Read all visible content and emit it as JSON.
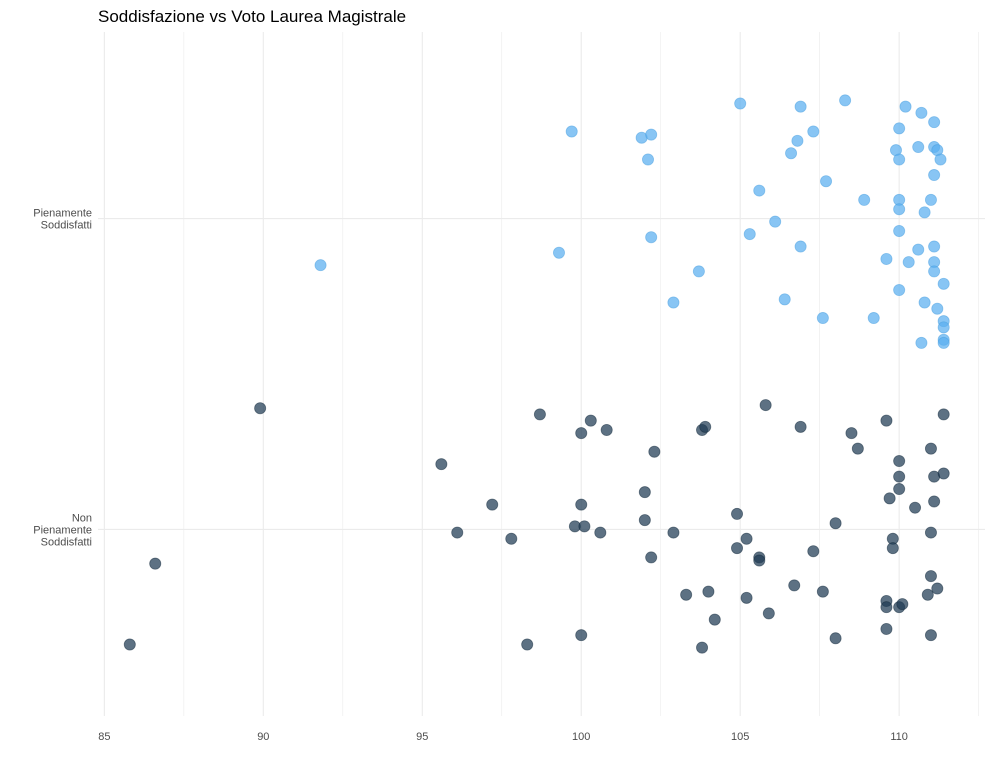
{
  "chart_data": {
    "type": "scatter",
    "title": "Soddisfazione vs Voto Laurea Magistrale",
    "xlabel": "",
    "ylabel": "",
    "xlim": [
      84.8,
      112.7
    ],
    "x_ticks": [
      85,
      90,
      95,
      100,
      105,
      110
    ],
    "categories": [
      "Non Pienamente Soddisfatti",
      "Pienamente Soddisfatti"
    ],
    "category_tick_lines": [
      [
        "Non",
        "Pienamente",
        "Soddisfatti"
      ],
      [
        "Pienamente",
        "Soddisfatti"
      ]
    ],
    "grid": true,
    "legend": "none",
    "colors": {
      "Pienamente Soddisfatti": "#5aaff0",
      "Non Pienamente Soddisfatti": "#1f3a53"
    },
    "series": [
      {
        "category": "Pienamente Soddisfatti",
        "points": [
          [
            105.0,
            0.37
          ],
          [
            106.9,
            0.36
          ],
          [
            108.3,
            0.38
          ],
          [
            110.2,
            0.36
          ],
          [
            110.7,
            0.34
          ],
          [
            111.1,
            0.31
          ],
          [
            99.7,
            0.28
          ],
          [
            101.9,
            0.26
          ],
          [
            102.2,
            0.27
          ],
          [
            106.8,
            0.25
          ],
          [
            107.3,
            0.28
          ],
          [
            110.0,
            0.29
          ],
          [
            110.6,
            0.23
          ],
          [
            111.1,
            0.23
          ],
          [
            111.2,
            0.22
          ],
          [
            111.3,
            0.19
          ],
          [
            109.9,
            0.22
          ],
          [
            110.0,
            0.19
          ],
          [
            106.6,
            0.21
          ],
          [
            102.1,
            0.19
          ],
          [
            111.1,
            0.14
          ],
          [
            107.7,
            0.12
          ],
          [
            105.6,
            0.09
          ],
          [
            108.9,
            0.06
          ],
          [
            110.0,
            0.06
          ],
          [
            111.0,
            0.06
          ],
          [
            110.0,
            0.03
          ],
          [
            110.8,
            0.02
          ],
          [
            106.1,
            -0.01
          ],
          [
            99.3,
            -0.11
          ],
          [
            102.2,
            -0.06
          ],
          [
            105.3,
            -0.05
          ],
          [
            106.9,
            -0.09
          ],
          [
            110.0,
            -0.04
          ],
          [
            110.6,
            -0.1
          ],
          [
            111.1,
            -0.09
          ],
          [
            91.8,
            -0.15
          ],
          [
            103.7,
            -0.17
          ],
          [
            109.6,
            -0.13
          ],
          [
            110.3,
            -0.14
          ],
          [
            111.1,
            -0.14
          ],
          [
            111.1,
            -0.17
          ],
          [
            111.4,
            -0.21
          ],
          [
            102.9,
            -0.27
          ],
          [
            106.4,
            -0.26
          ],
          [
            107.6,
            -0.32
          ],
          [
            109.2,
            -0.32
          ],
          [
            110.0,
            -0.23
          ],
          [
            110.8,
            -0.27
          ],
          [
            111.2,
            -0.29
          ],
          [
            111.4,
            -0.33
          ],
          [
            111.4,
            -0.35
          ],
          [
            111.4,
            -0.39
          ],
          [
            111.4,
            -0.4
          ],
          [
            110.7,
            -0.4
          ]
        ]
      },
      {
        "category": "Non Pienamente Soddisfatti",
        "points": [
          [
            89.9,
            0.39
          ],
          [
            98.7,
            0.37
          ],
          [
            105.8,
            0.4
          ],
          [
            111.4,
            0.37
          ],
          [
            100.3,
            0.35
          ],
          [
            100.0,
            0.31
          ],
          [
            100.8,
            0.32
          ],
          [
            103.8,
            0.32
          ],
          [
            103.9,
            0.33
          ],
          [
            106.9,
            0.33
          ],
          [
            108.5,
            0.31
          ],
          [
            109.6,
            0.35
          ],
          [
            102.3,
            0.25
          ],
          [
            108.7,
            0.26
          ],
          [
            111.0,
            0.26
          ],
          [
            95.6,
            0.21
          ],
          [
            110.0,
            0.22
          ],
          [
            102.0,
            0.12
          ],
          [
            110.0,
            0.17
          ],
          [
            111.1,
            0.17
          ],
          [
            111.4,
            0.18
          ],
          [
            110.0,
            0.13
          ],
          [
            109.7,
            0.1
          ],
          [
            110.5,
            0.07
          ],
          [
            111.1,
            0.09
          ],
          [
            97.2,
            0.08
          ],
          [
            100.0,
            0.08
          ],
          [
            104.9,
            0.05
          ],
          [
            99.8,
            0.01
          ],
          [
            100.1,
            0.01
          ],
          [
            102.0,
            0.03
          ],
          [
            108.0,
            0.02
          ],
          [
            96.1,
            -0.01
          ],
          [
            97.8,
            -0.03
          ],
          [
            100.6,
            -0.01
          ],
          [
            102.9,
            -0.01
          ],
          [
            105.2,
            -0.03
          ],
          [
            104.9,
            -0.06
          ],
          [
            107.3,
            -0.07
          ],
          [
            109.8,
            -0.03
          ],
          [
            109.8,
            -0.06
          ],
          [
            111.0,
            -0.01
          ],
          [
            86.6,
            -0.11
          ],
          [
            102.2,
            -0.09
          ],
          [
            105.6,
            -0.09
          ],
          [
            105.6,
            -0.1
          ],
          [
            111.0,
            -0.15
          ],
          [
            103.3,
            -0.21
          ],
          [
            104.0,
            -0.2
          ],
          [
            105.2,
            -0.22
          ],
          [
            106.7,
            -0.18
          ],
          [
            107.6,
            -0.2
          ],
          [
            109.6,
            -0.23
          ],
          [
            109.6,
            -0.25
          ],
          [
            110.0,
            -0.25
          ],
          [
            110.1,
            -0.24
          ],
          [
            110.9,
            -0.21
          ],
          [
            111.2,
            -0.19
          ],
          [
            104.2,
            -0.29
          ],
          [
            105.9,
            -0.27
          ],
          [
            109.6,
            -0.32
          ],
          [
            111.0,
            -0.34
          ],
          [
            85.8,
            -0.37
          ],
          [
            98.3,
            -0.37
          ],
          [
            100.0,
            -0.34
          ],
          [
            103.8,
            -0.38
          ],
          [
            108.0,
            -0.35
          ]
        ]
      }
    ]
  }
}
